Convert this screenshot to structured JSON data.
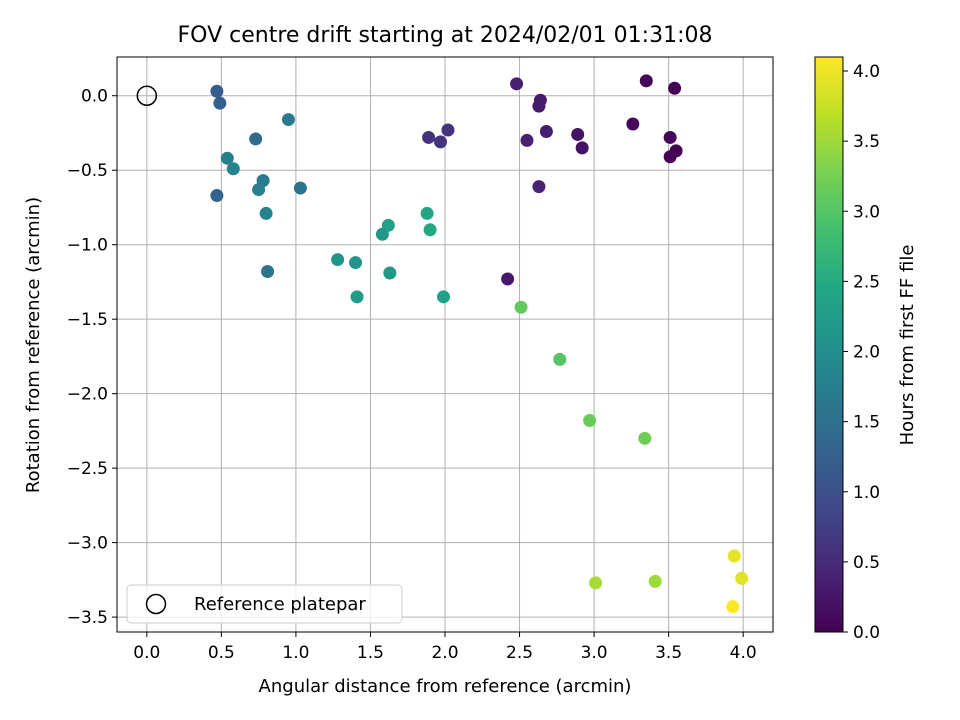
{
  "chart_data": {
    "type": "scatter",
    "title": "FOV centre drift starting at 2024/02/01 01:31:08",
    "xlabel": "Angular distance from reference (arcmin)",
    "ylabel": "Rotation from reference (arcmin)",
    "xlim": [
      -0.2,
      4.2
    ],
    "ylim": [
      -3.6,
      0.26
    ],
    "xticks": [
      0.0,
      0.5,
      1.0,
      1.5,
      2.0,
      2.5,
      3.0,
      3.5,
      4.0
    ],
    "yticks": [
      0.0,
      -0.5,
      -1.0,
      -1.5,
      -2.0,
      -2.5,
      -3.0,
      -3.5
    ],
    "xtick_labels": [
      "0.0",
      "0.5",
      "1.0",
      "1.5",
      "2.0",
      "2.5",
      "3.0",
      "3.5",
      "4.0"
    ],
    "ytick_labels": [
      "0.0",
      "−0.5",
      "−1.0",
      "−1.5",
      "−2.0",
      "−2.5",
      "−3.0",
      "−3.5"
    ],
    "grid": true,
    "colormap": "viridis",
    "colorbar": {
      "label": "Hours from first FF file",
      "range": [
        0.0,
        4.1
      ],
      "ticks": [
        0.0,
        0.5,
        1.0,
        1.5,
        2.0,
        2.5,
        3.0,
        3.5,
        4.0
      ],
      "tick_labels": [
        "0.0",
        "0.5",
        "1.0",
        "1.5",
        "2.0",
        "2.5",
        "3.0",
        "3.5",
        "4.0"
      ]
    },
    "legend": {
      "placement": "lower-left",
      "entries": [
        {
          "label": "Reference platepar",
          "marker": "open-circle"
        }
      ]
    },
    "reference_point": {
      "x": 0.0,
      "y": 0.0
    },
    "points": [
      {
        "x": 3.35,
        "y": 0.1,
        "hours": 0.05
      },
      {
        "x": 3.54,
        "y": 0.05,
        "hours": 0.03
      },
      {
        "x": 3.26,
        "y": -0.19,
        "hours": 0.08
      },
      {
        "x": 3.51,
        "y": -0.28,
        "hours": 0.06
      },
      {
        "x": 3.55,
        "y": -0.37,
        "hours": 0.0
      },
      {
        "x": 3.51,
        "y": -0.41,
        "hours": 0.04
      },
      {
        "x": 2.89,
        "y": -0.26,
        "hours": 0.22
      },
      {
        "x": 2.92,
        "y": -0.35,
        "hours": 0.2
      },
      {
        "x": 2.48,
        "y": 0.08,
        "hours": 0.35
      },
      {
        "x": 2.64,
        "y": -0.03,
        "hours": 0.32
      },
      {
        "x": 2.63,
        "y": -0.07,
        "hours": 0.3
      },
      {
        "x": 2.68,
        "y": -0.24,
        "hours": 0.33
      },
      {
        "x": 2.55,
        "y": -0.3,
        "hours": 0.38
      },
      {
        "x": 2.63,
        "y": -0.61,
        "hours": 0.4
      },
      {
        "x": 2.42,
        "y": -1.23,
        "hours": 0.27
      },
      {
        "x": 2.02,
        "y": -0.23,
        "hours": 0.6
      },
      {
        "x": 1.97,
        "y": -0.31,
        "hours": 0.62
      },
      {
        "x": 1.89,
        "y": -0.28,
        "hours": 0.58
      },
      {
        "x": 0.47,
        "y": 0.03,
        "hours": 1.2
      },
      {
        "x": 0.49,
        "y": -0.05,
        "hours": 1.25
      },
      {
        "x": 0.95,
        "y": -0.16,
        "hours": 1.65
      },
      {
        "x": 0.73,
        "y": -0.29,
        "hours": 1.45
      },
      {
        "x": 0.54,
        "y": -0.42,
        "hours": 1.75
      },
      {
        "x": 0.58,
        "y": -0.49,
        "hours": 1.8
      },
      {
        "x": 0.78,
        "y": -0.57,
        "hours": 1.7
      },
      {
        "x": 0.75,
        "y": -0.63,
        "hours": 1.75
      },
      {
        "x": 1.03,
        "y": -0.62,
        "hours": 1.55
      },
      {
        "x": 0.47,
        "y": -0.67,
        "hours": 1.3
      },
      {
        "x": 0.8,
        "y": -0.79,
        "hours": 1.82
      },
      {
        "x": 0.81,
        "y": -1.18,
        "hours": 1.55
      },
      {
        "x": 1.88,
        "y": -0.79,
        "hours": 2.4
      },
      {
        "x": 1.62,
        "y": -0.87,
        "hours": 2.35
      },
      {
        "x": 1.9,
        "y": -0.9,
        "hours": 2.45
      },
      {
        "x": 1.58,
        "y": -0.93,
        "hours": 2.2
      },
      {
        "x": 1.28,
        "y": -1.1,
        "hours": 2.15
      },
      {
        "x": 1.4,
        "y": -1.12,
        "hours": 2.1
      },
      {
        "x": 1.63,
        "y": -1.19,
        "hours": 2.2
      },
      {
        "x": 1.41,
        "y": -1.35,
        "hours": 2.25
      },
      {
        "x": 1.99,
        "y": -1.35,
        "hours": 2.3
      },
      {
        "x": 2.51,
        "y": -1.42,
        "hours": 3.1
      },
      {
        "x": 2.77,
        "y": -1.77,
        "hours": 3.0
      },
      {
        "x": 2.97,
        "y": -2.18,
        "hours": 3.15
      },
      {
        "x": 3.34,
        "y": -2.3,
        "hours": 3.2
      },
      {
        "x": 3.01,
        "y": -3.27,
        "hours": 3.55
      },
      {
        "x": 3.41,
        "y": -3.26,
        "hours": 3.5
      },
      {
        "x": 3.94,
        "y": -3.09,
        "hours": 3.95
      },
      {
        "x": 3.99,
        "y": -3.24,
        "hours": 3.9
      },
      {
        "x": 3.93,
        "y": -3.43,
        "hours": 4.1
      }
    ]
  }
}
